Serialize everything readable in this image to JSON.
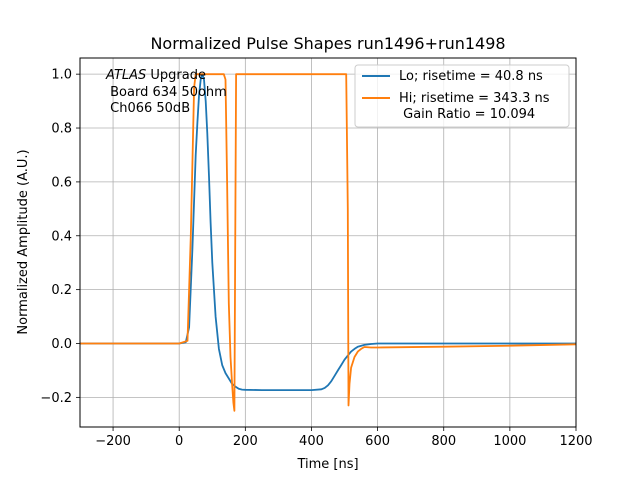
{
  "chart_data": {
    "type": "line",
    "title": "Normalized Pulse Shapes run1496+run1498",
    "xlabel": "Time [ns]",
    "ylabel": "Normalized Amplitude (A.U.)",
    "xlim": [
      -300,
      1200
    ],
    "ylim": [
      -0.31,
      1.06
    ],
    "xticks": [
      -200,
      0,
      200,
      400,
      600,
      800,
      1000,
      1200
    ],
    "xtick_labels": [
      "−200",
      "0",
      "200",
      "400",
      "600",
      "800",
      "1000",
      "1200"
    ],
    "yticks": [
      -0.2,
      0.0,
      0.2,
      0.4,
      0.6,
      0.8,
      1.0
    ],
    "ytick_labels": [
      "−0.2",
      "0.0",
      "0.2",
      "0.4",
      "0.6",
      "0.8",
      "1.0"
    ],
    "grid": true,
    "legend_position": "top-right",
    "annotation": {
      "line1_italic": "ATLAS",
      "line1_rest": " Upgrade",
      "line2": " Board 634 50ohm",
      "line3": " Ch066 50dB"
    },
    "series": [
      {
        "name": "Lo; risetime = 40.8 ns",
        "legend_label": "Lo; risetime = 40.8 ns",
        "color": "#1f77b4",
        "x": [
          -300,
          0,
          20,
          30,
          40,
          50,
          55,
          60,
          65,
          70,
          75,
          80,
          85,
          90,
          95,
          100,
          110,
          120,
          130,
          140,
          150,
          160,
          170,
          180,
          190,
          200,
          250,
          300,
          350,
          400,
          430,
          440,
          450,
          460,
          470,
          480,
          490,
          500,
          510,
          520,
          530,
          540,
          560,
          580,
          600,
          1200
        ],
        "y": [
          0.0,
          0.0,
          0.005,
          0.06,
          0.35,
          0.7,
          0.82,
          0.92,
          0.98,
          1.0,
          0.98,
          0.9,
          0.78,
          0.62,
          0.45,
          0.3,
          0.1,
          -0.02,
          -0.08,
          -0.11,
          -0.13,
          -0.15,
          -0.16,
          -0.168,
          -0.171,
          -0.172,
          -0.173,
          -0.173,
          -0.173,
          -0.173,
          -0.17,
          -0.165,
          -0.155,
          -0.14,
          -0.12,
          -0.1,
          -0.08,
          -0.06,
          -0.045,
          -0.03,
          -0.02,
          -0.012,
          -0.005,
          -0.002,
          0.0,
          0.0
        ]
      },
      {
        "name": "Hi; risetime = 343.3 ns",
        "legend_label": "Hi; risetime = 343.3 ns",
        "legend_label2": " Gain Ratio = 10.094",
        "color": "#ff7f0e",
        "x": [
          -300,
          0,
          25,
          35,
          45,
          50,
          55,
          135,
          140,
          145,
          150,
          155,
          160,
          164,
          167,
          170,
          172,
          175,
          178,
          200,
          505,
          510,
          512,
          515,
          520,
          530,
          540,
          550,
          560,
          580,
          600,
          800,
          1000,
          1200
        ],
        "y": [
          0.0,
          0.0,
          0.01,
          0.4,
          0.95,
          1.0,
          1.0,
          1.0,
          0.98,
          0.6,
          0.15,
          -0.05,
          -0.15,
          -0.22,
          -0.25,
          0.5,
          1.0,
          1.0,
          1.0,
          1.0,
          1.0,
          0.5,
          -0.23,
          -0.15,
          -0.09,
          -0.05,
          -0.03,
          -0.02,
          -0.013,
          -0.015,
          -0.015,
          -0.012,
          -0.008,
          -0.003
        ]
      }
    ]
  }
}
